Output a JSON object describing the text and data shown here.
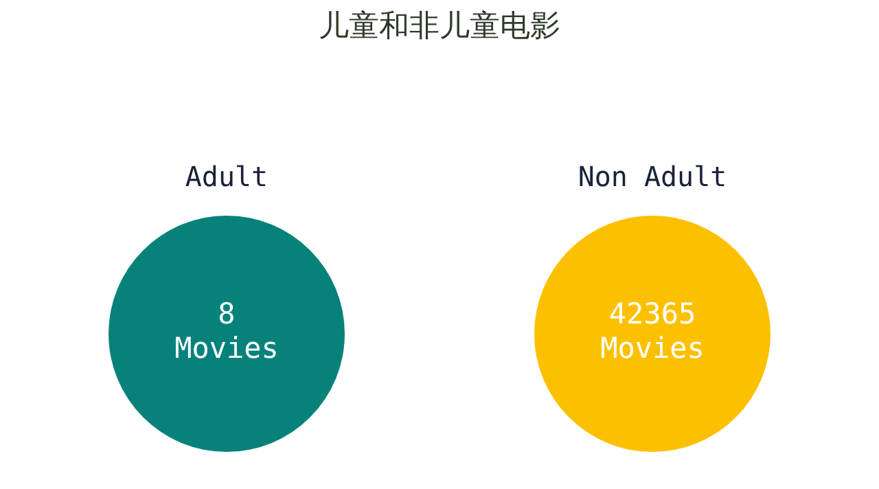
{
  "chart_data": {
    "type": "other",
    "title": "儿童和非儿童电影",
    "categories": [
      "Adult",
      "Non Adult"
    ],
    "values": [
      8,
      42365
    ],
    "data_labels": true,
    "annotations": [
      "Movies",
      "Movies"
    ],
    "colors": [
      "#07827b",
      "#fdc000"
    ]
  }
}
